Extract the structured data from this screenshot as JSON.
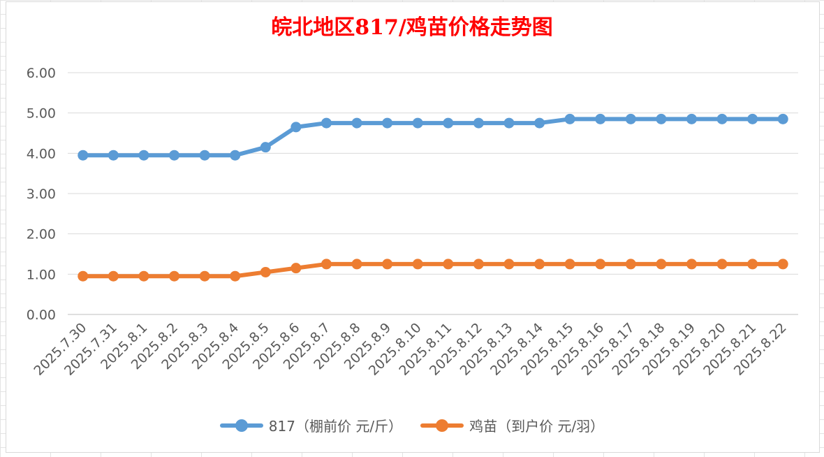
{
  "chart_data": {
    "type": "line",
    "title": "皖北地区817/鸡苗价格走势图",
    "title_color": "#ff0000",
    "xlabel": "",
    "ylabel": "",
    "ylim": [
      0,
      6
    ],
    "y_ticks": [
      "0.00",
      "1.00",
      "2.00",
      "3.00",
      "4.00",
      "5.00",
      "6.00"
    ],
    "grid": true,
    "legend_position": "bottom",
    "categories": [
      "2025.7.30",
      "2025.7.31",
      "2025.8.1",
      "2025.8.2",
      "2025.8.3",
      "2025.8.4",
      "2025.8.5",
      "2025.8.6",
      "2025.8.7",
      "2025.8.8",
      "2025.8.9",
      "2025.8.10",
      "2025.8.11",
      "2025.8.12",
      "2025.8.13",
      "2025.8.14",
      "2025.8.15",
      "2025.8.16",
      "2025.8.17",
      "2025.8.18",
      "2025.8.19",
      "2025.8.20",
      "2025.8.21",
      "2025.8.22"
    ],
    "series": [
      {
        "name": "817（棚前价 元/斤）",
        "color": "#5b9bd5",
        "values": [
          3.95,
          3.95,
          3.95,
          3.95,
          3.95,
          3.95,
          4.15,
          4.65,
          4.75,
          4.75,
          4.75,
          4.75,
          4.75,
          4.75,
          4.75,
          4.75,
          4.85,
          4.85,
          4.85,
          4.85,
          4.85,
          4.85,
          4.85,
          4.85
        ]
      },
      {
        "name": "鸡苗（到户价 元/羽）",
        "color": "#ed7d31",
        "values": [
          0.95,
          0.95,
          0.95,
          0.95,
          0.95,
          0.95,
          1.05,
          1.15,
          1.25,
          1.25,
          1.25,
          1.25,
          1.25,
          1.25,
          1.25,
          1.25,
          1.25,
          1.25,
          1.25,
          1.25,
          1.25,
          1.25,
          1.25,
          1.25
        ]
      }
    ]
  }
}
